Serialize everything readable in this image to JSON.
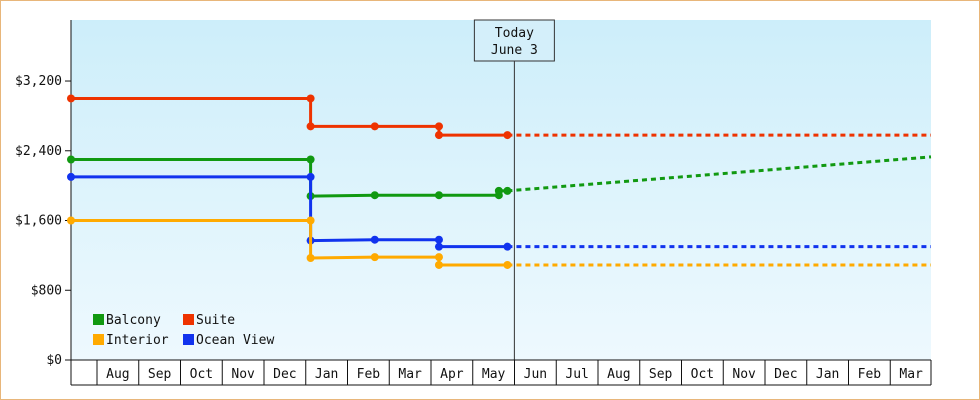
{
  "chart_data": {
    "type": "line",
    "y_axis": {
      "min": 0,
      "max": 3900,
      "ticks": [
        0,
        800,
        1600,
        2400,
        3200
      ],
      "tick_labels": [
        "$0",
        "$800",
        "$1,600",
        "$2,400",
        "$3,200"
      ]
    },
    "months": [
      "Aug",
      "Sep",
      "Oct",
      "Nov",
      "Dec",
      "Jan",
      "Feb",
      "Mar",
      "Apr",
      "May",
      "Jun",
      "Jul",
      "Aug",
      "Sep",
      "Oct",
      "Nov",
      "Dec",
      "Jan",
      "Feb",
      "Mar"
    ],
    "today": {
      "line1": "Today",
      "line2": "June 3",
      "x_index": 10
    },
    "series": [
      {
        "name": "Suite",
        "color": "#ee3300",
        "points": [
          [
            0,
            3000
          ],
          [
            5.6,
            3000
          ],
          [
            5.6,
            2680
          ],
          [
            7.1,
            2680
          ],
          [
            8.6,
            2680
          ],
          [
            8.6,
            2580
          ],
          [
            10.2,
            2580
          ]
        ],
        "markers": [
          [
            0,
            3000
          ],
          [
            5.6,
            3000
          ],
          [
            5.6,
            2680
          ],
          [
            7.1,
            2680
          ],
          [
            8.6,
            2680
          ],
          [
            8.6,
            2580
          ],
          [
            10.2,
            2580
          ]
        ],
        "projection": [
          [
            10.2,
            2580
          ],
          [
            20.1,
            2580
          ]
        ]
      },
      {
        "name": "Balcony",
        "color": "#119911",
        "points": [
          [
            0,
            2300
          ],
          [
            5.6,
            2300
          ],
          [
            5.6,
            1880
          ],
          [
            7.1,
            1890
          ],
          [
            8.6,
            1890
          ],
          [
            10.0,
            1890
          ],
          [
            10.0,
            1940
          ],
          [
            10.2,
            1940
          ]
        ],
        "markers": [
          [
            0,
            2300
          ],
          [
            5.6,
            2300
          ],
          [
            5.6,
            1880
          ],
          [
            7.1,
            1890
          ],
          [
            8.6,
            1890
          ],
          [
            10.0,
            1890
          ],
          [
            10.0,
            1940
          ],
          [
            10.2,
            1940
          ]
        ],
        "projection": [
          [
            10.2,
            1940
          ],
          [
            20.1,
            2330
          ]
        ]
      },
      {
        "name": "Ocean View",
        "color": "#1133ee",
        "points": [
          [
            0,
            2100
          ],
          [
            5.6,
            2100
          ],
          [
            5.6,
            1370
          ],
          [
            7.1,
            1380
          ],
          [
            8.6,
            1380
          ],
          [
            8.6,
            1300
          ],
          [
            10.2,
            1300
          ]
        ],
        "markers": [
          [
            0,
            2100
          ],
          [
            5.6,
            2100
          ],
          [
            5.6,
            1370
          ],
          [
            7.1,
            1380
          ],
          [
            8.6,
            1380
          ],
          [
            8.6,
            1300
          ],
          [
            10.2,
            1300
          ]
        ],
        "projection": [
          [
            10.2,
            1300
          ],
          [
            20.1,
            1300
          ]
        ]
      },
      {
        "name": "Interior",
        "color": "#ffaa00",
        "points": [
          [
            0,
            1600
          ],
          [
            5.6,
            1600
          ],
          [
            5.6,
            1170
          ],
          [
            7.1,
            1180
          ],
          [
            8.6,
            1180
          ],
          [
            8.6,
            1090
          ],
          [
            10.2,
            1090
          ]
        ],
        "markers": [
          [
            0,
            1600
          ],
          [
            5.6,
            1600
          ],
          [
            5.6,
            1170
          ],
          [
            7.1,
            1180
          ],
          [
            8.6,
            1180
          ],
          [
            8.6,
            1090
          ],
          [
            10.2,
            1090
          ]
        ],
        "projection": [
          [
            10.2,
            1090
          ],
          [
            20.1,
            1090
          ]
        ]
      }
    ],
    "legend": [
      {
        "name": "Balcony",
        "color": "#119911"
      },
      {
        "name": "Suite",
        "color": "#ee3300"
      },
      {
        "name": "Interior",
        "color": "#ffaa00"
      },
      {
        "name": "Ocean View",
        "color": "#1133ee"
      }
    ],
    "legend_position": "bottom-left",
    "grid": false
  }
}
